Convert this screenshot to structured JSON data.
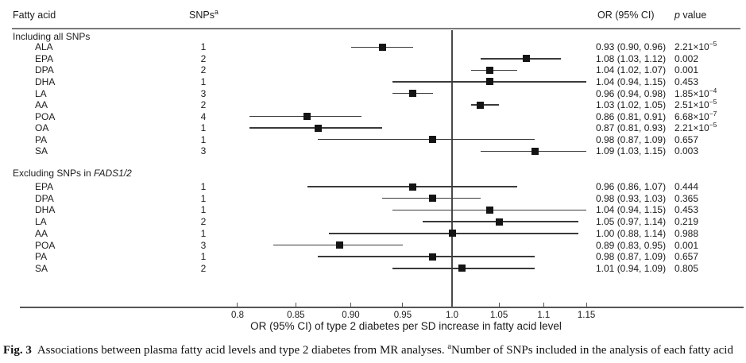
{
  "header": {
    "fatty_acid": "Fatty acid",
    "snps": "SNPs",
    "snps_sup": "a",
    "or": "OR (95% CI)",
    "p_italic": "p",
    "p_rest": " value"
  },
  "chart_data": {
    "type": "forest",
    "x_scale": "log",
    "ref_line": 1.0,
    "xlabel": "OR (95% CI) of type 2 diabetes per SD increase in fatty acid level",
    "x_ticks": [
      0.8,
      0.85,
      0.9,
      0.95,
      1.0,
      1.05,
      1.1,
      1.15
    ],
    "x_tick_labels": [
      "0.8",
      "0.85",
      "0.90",
      "0.95",
      "1.0",
      "1.05",
      "1.1",
      "1.15"
    ],
    "xlim": [
      0.77,
      1.19
    ],
    "sections": [
      {
        "label": "Including all SNPs",
        "label_italic": "",
        "rows": [
          {
            "fatty_acid": "ALA",
            "snps": "1",
            "or": 0.93,
            "ci_low": 0.9,
            "ci_high": 0.96,
            "or_ci_text": "0.93 (0.90, 0.96)",
            "p_base": "2.21×10",
            "p_exp": "−5"
          },
          {
            "fatty_acid": "EPA",
            "snps": "2",
            "or": 1.08,
            "ci_low": 1.03,
            "ci_high": 1.12,
            "or_ci_text": "1.08 (1.03, 1.12)",
            "p_base": "0.002",
            "p_exp": ""
          },
          {
            "fatty_acid": "DPA",
            "snps": "2",
            "or": 1.04,
            "ci_low": 1.02,
            "ci_high": 1.07,
            "or_ci_text": "1.04 (1.02, 1.07)",
            "p_base": "0.001",
            "p_exp": ""
          },
          {
            "fatty_acid": "DHA",
            "snps": "1",
            "or": 1.04,
            "ci_low": 0.94,
            "ci_high": 1.15,
            "or_ci_text": "1.04 (0.94, 1.15)",
            "p_base": "0.453",
            "p_exp": ""
          },
          {
            "fatty_acid": "LA",
            "snps": "3",
            "or": 0.96,
            "ci_low": 0.94,
            "ci_high": 0.98,
            "or_ci_text": "0.96 (0.94, 0.98)",
            "p_base": "1.85×10",
            "p_exp": "−4"
          },
          {
            "fatty_acid": "AA",
            "snps": "2",
            "or": 1.03,
            "ci_low": 1.02,
            "ci_high": 1.05,
            "or_ci_text": "1.03 (1.02, 1.05)",
            "p_base": "2.51×10",
            "p_exp": "−5"
          },
          {
            "fatty_acid": "POA",
            "snps": "4",
            "or": 0.86,
            "ci_low": 0.81,
            "ci_high": 0.91,
            "or_ci_text": "0.86 (0.81, 0.91)",
            "p_base": "6.68×10",
            "p_exp": "−7"
          },
          {
            "fatty_acid": "OA",
            "snps": "1",
            "or": 0.87,
            "ci_low": 0.81,
            "ci_high": 0.93,
            "or_ci_text": "0.87 (0.81, 0.93)",
            "p_base": "2.21×10",
            "p_exp": "−5"
          },
          {
            "fatty_acid": "PA",
            "snps": "1",
            "or": 0.98,
            "ci_low": 0.87,
            "ci_high": 1.09,
            "or_ci_text": "0.98 (0.87, 1.09)",
            "p_base": "0.657",
            "p_exp": ""
          },
          {
            "fatty_acid": "SA",
            "snps": "3",
            "or": 1.09,
            "ci_low": 1.03,
            "ci_high": 1.15,
            "or_ci_text": "1.09 (1.03, 1.15)",
            "p_base": "0.003",
            "p_exp": ""
          }
        ]
      },
      {
        "label": "Excluding SNPs in ",
        "label_italic": "FADS1/2",
        "rows": [
          {
            "fatty_acid": "EPA",
            "snps": "1",
            "or": 0.96,
            "ci_low": 0.86,
            "ci_high": 1.07,
            "or_ci_text": "0.96 (0.86, 1.07)",
            "p_base": "0.444",
            "p_exp": ""
          },
          {
            "fatty_acid": "DPA",
            "snps": "1",
            "or": 0.98,
            "ci_low": 0.93,
            "ci_high": 1.03,
            "or_ci_text": "0.98 (0.93, 1.03)",
            "p_base": "0.365",
            "p_exp": ""
          },
          {
            "fatty_acid": "DHA",
            "snps": "1",
            "or": 1.04,
            "ci_low": 0.94,
            "ci_high": 1.15,
            "or_ci_text": "1.04 (0.94, 1.15)",
            "p_base": "0.453",
            "p_exp": ""
          },
          {
            "fatty_acid": "LA",
            "snps": "2",
            "or": 1.05,
            "ci_low": 0.97,
            "ci_high": 1.14,
            "or_ci_text": "1.05 (0.97, 1.14)",
            "p_base": "0.219",
            "p_exp": ""
          },
          {
            "fatty_acid": "AA",
            "snps": "1",
            "or": 1.0,
            "ci_low": 0.88,
            "ci_high": 1.14,
            "or_ci_text": "1.00 (0.88, 1.14)",
            "p_base": "0.988",
            "p_exp": ""
          },
          {
            "fatty_acid": "POA",
            "snps": "3",
            "or": 0.89,
            "ci_low": 0.83,
            "ci_high": 0.95,
            "or_ci_text": "0.89 (0.83, 0.95)",
            "p_base": "0.001",
            "p_exp": ""
          },
          {
            "fatty_acid": "PA",
            "snps": "1",
            "or": 0.98,
            "ci_low": 0.87,
            "ci_high": 1.09,
            "or_ci_text": "0.98 (0.87, 1.09)",
            "p_base": "0.657",
            "p_exp": ""
          },
          {
            "fatty_acid": "SA",
            "snps": "2",
            "or": 1.01,
            "ci_low": 0.94,
            "ci_high": 1.09,
            "or_ci_text": "1.01 (0.94, 1.09)",
            "p_base": "0.805",
            "p_exp": ""
          }
        ]
      }
    ]
  },
  "caption": {
    "label": "Fig. 3",
    "text1": "Associations between plasma fatty acid levels and type 2 diabetes from MR analyses. ",
    "sup": "a",
    "text2": "Number of SNPs included in the analysis of each fatty acid"
  },
  "colors": {
    "marker": "#141414",
    "ci_line": "#3a3a3a",
    "axis_line": "#555555",
    "text": "#1c1c1c"
  }
}
